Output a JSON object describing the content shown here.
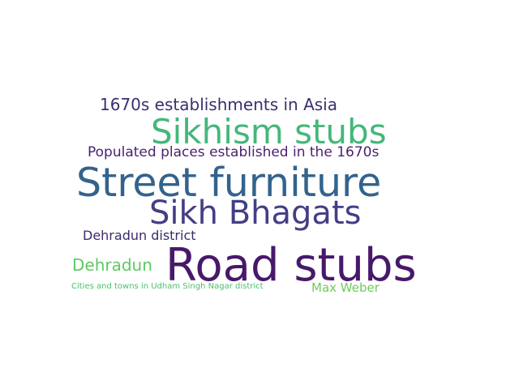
{
  "word_cloud": {
    "words": [
      {
        "id": "1670s-asia",
        "text": "1670s establishments in Asia",
        "color": "#3b2f6e"
      },
      {
        "id": "sikhism-stubs",
        "text": "Sikhism stubs",
        "color": "#44b77b"
      },
      {
        "id": "populated-places",
        "text": "Populated places established in the 1670s",
        "color": "#4b1f6f"
      },
      {
        "id": "street-furniture",
        "text": "Street furniture",
        "color": "#33638d"
      },
      {
        "id": "sikh-bhagats",
        "text": "Sikh Bhagats",
        "color": "#433e85"
      },
      {
        "id": "dehradun-district",
        "text": "Dehradun district",
        "color": "#3d2a6b"
      },
      {
        "id": "dehradun",
        "text": "Dehradun",
        "color": "#5ec962"
      },
      {
        "id": "road-stubs",
        "text": "Road stubs",
        "color": "#48186a"
      },
      {
        "id": "udham-singh",
        "text": "Cities and towns in Udham Singh Nagar district",
        "color": "#4ac16d"
      },
      {
        "id": "max-weber",
        "text": "Max Weber",
        "color": "#6ccd5a"
      }
    ]
  }
}
